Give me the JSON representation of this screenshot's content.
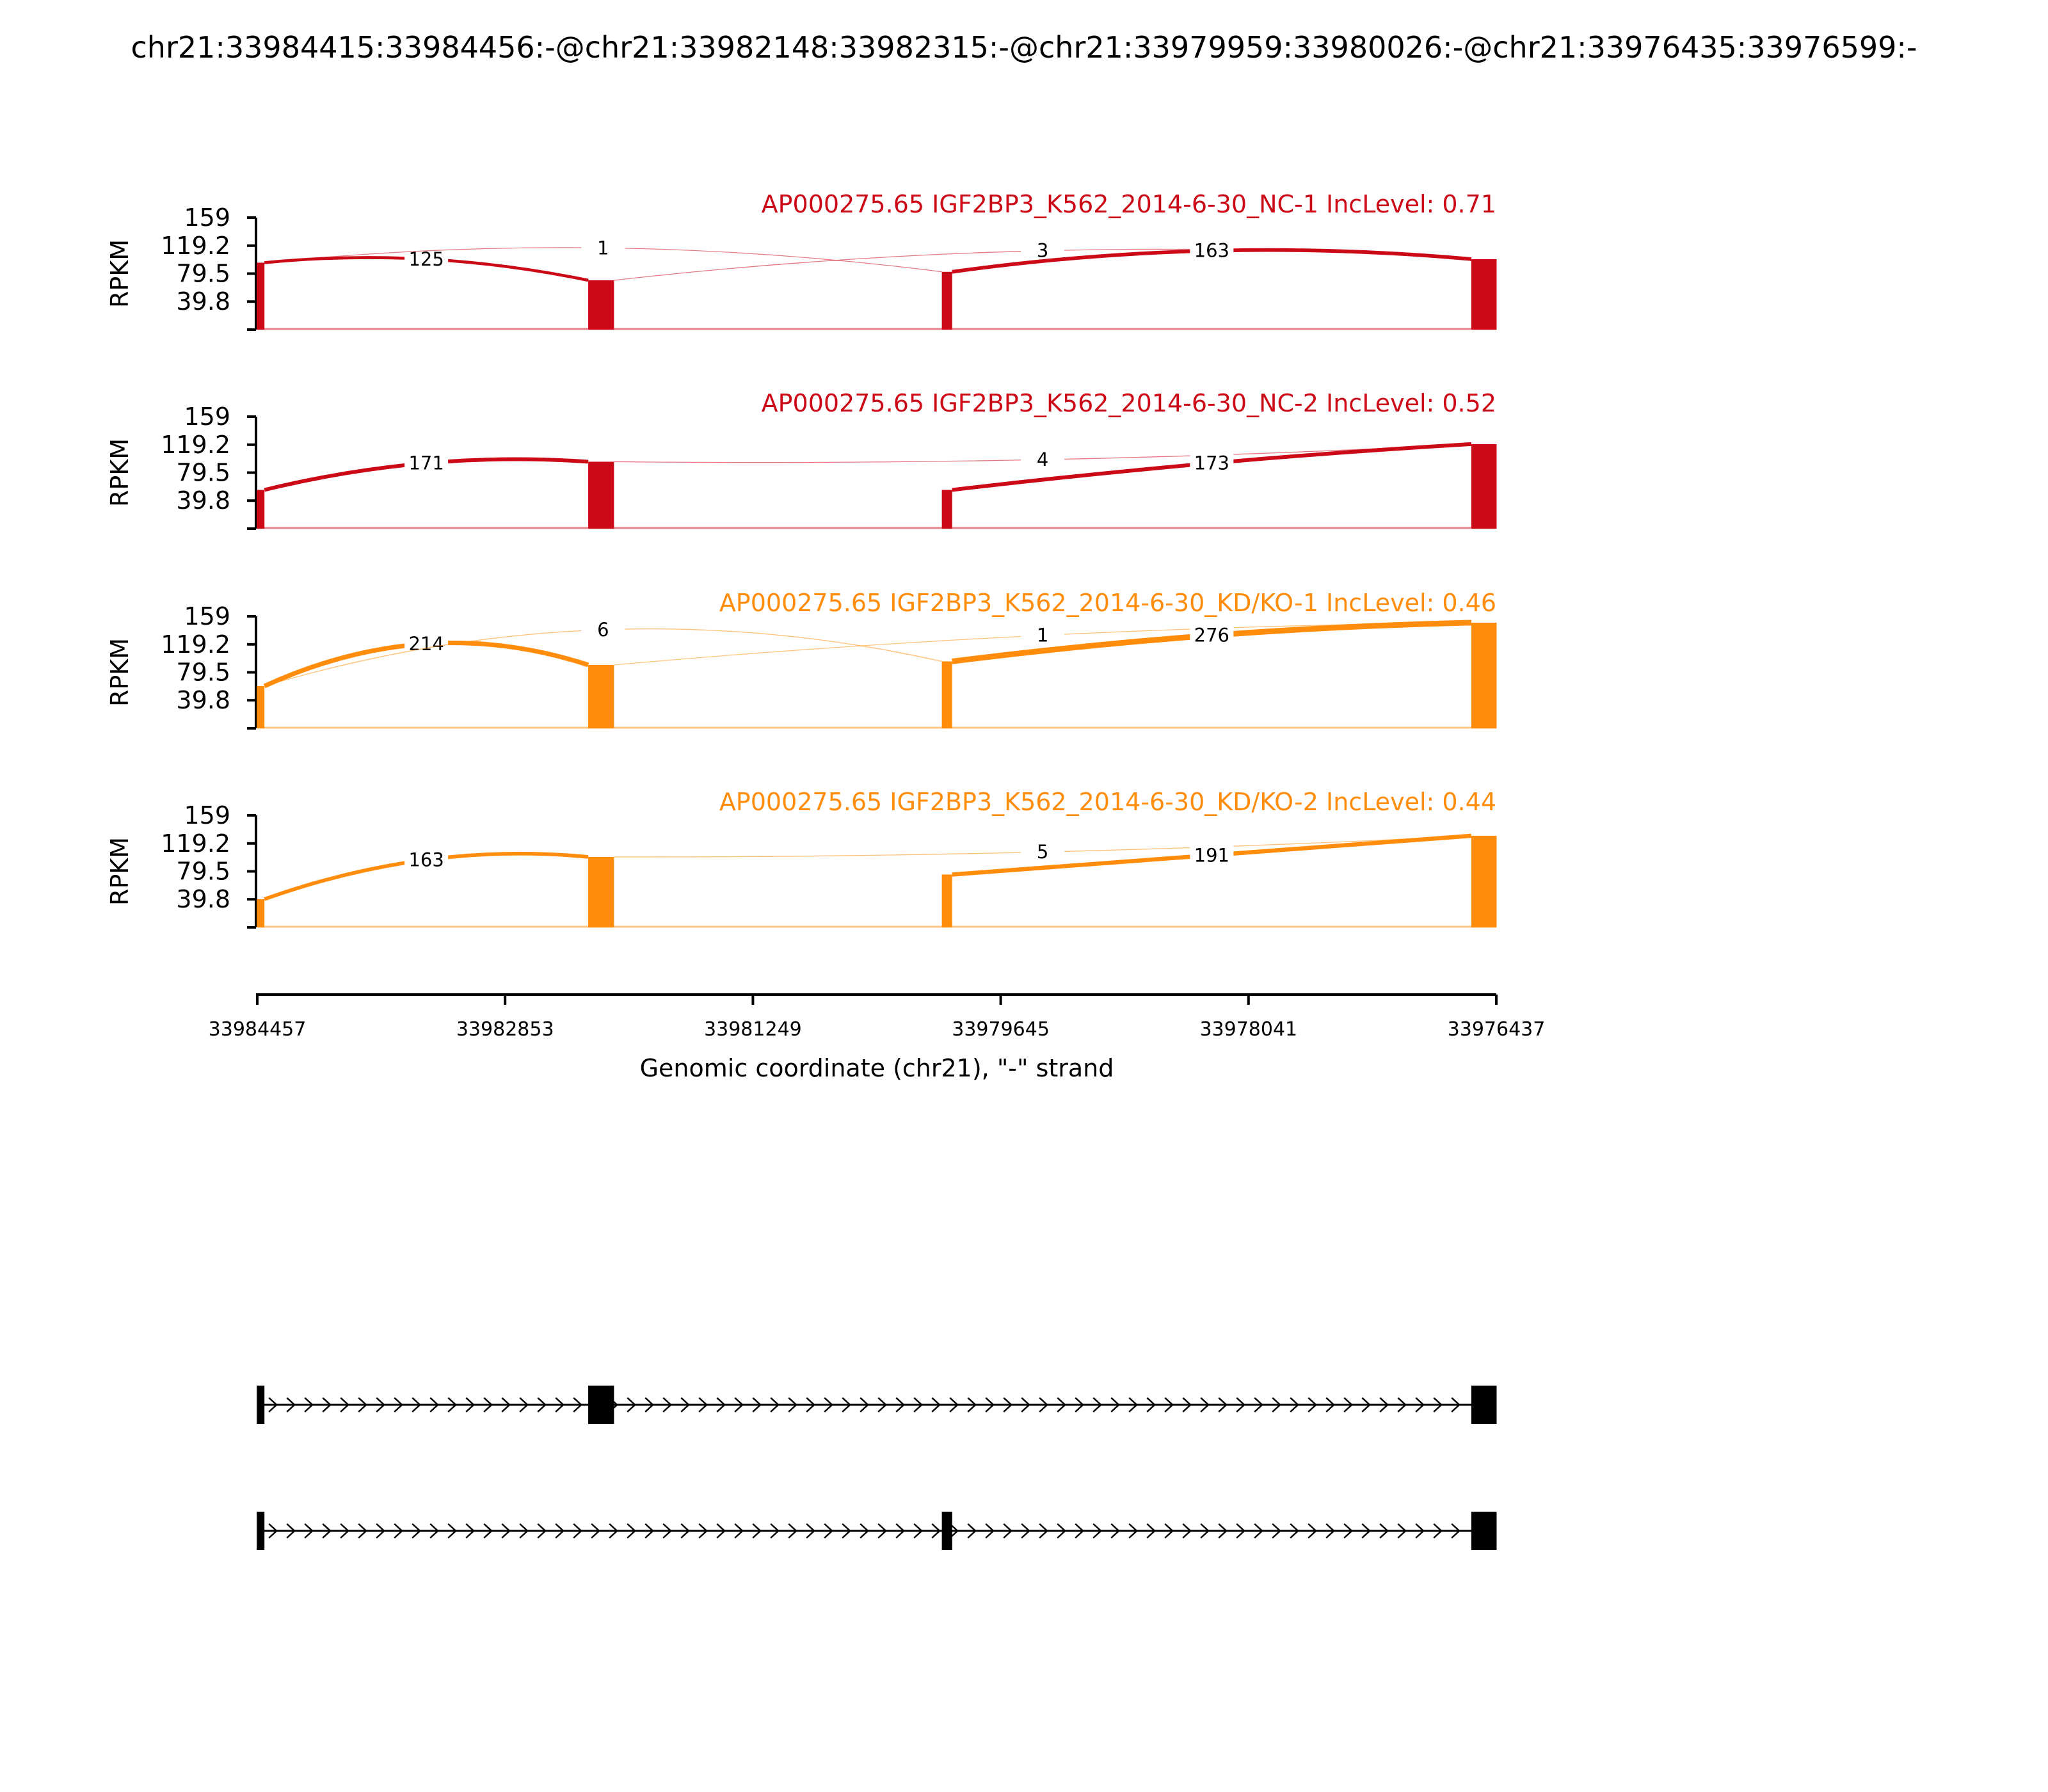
{
  "title": "chr21:33984415:33984456:-@chr21:33982148:33982315:-@chr21:33979959:33980026:-@chr21:33976435:33976599:-",
  "colors": {
    "nc": "#cc0a17",
    "kd": "#ff8c0a",
    "gene": "#000000"
  },
  "chart_data": {
    "type": "sashimi",
    "ylabel": "RPKM",
    "xlabel": "Genomic coordinate (chr21), \"-\" strand",
    "y_ticks": [
      "159",
      "119.2",
      "79.5",
      "39.8"
    ],
    "y_tick_values": [
      159,
      119.2,
      79.5,
      39.8
    ],
    "ylim": [
      0,
      159
    ],
    "x_ticks": [
      "33984457",
      "33982853",
      "33981249",
      "33979645",
      "33978041",
      "33976437"
    ],
    "x_tick_values": [
      33984457,
      33982853,
      33981249,
      33979645,
      33978041,
      33976437
    ],
    "xlim": [
      33984457,
      33976437
    ],
    "exons": [
      {
        "start": 33984456,
        "end": 33984415
      },
      {
        "start": 33982315,
        "end": 33982148
      },
      {
        "start": 33980026,
        "end": 33979959
      },
      {
        "start": 33976599,
        "end": 33976435
      }
    ],
    "tracks": [
      {
        "title": "AP000275.65 IGF2BP3_K562_2014-6-30_NC-1 IncLevel: 0.71",
        "group": "nc",
        "exon_heights": [
          95,
          70,
          82,
          100
        ],
        "junctions": [
          {
            "label": "125",
            "from_exon": 0,
            "to_exon": 1,
            "weight": 125,
            "peak": 100
          },
          {
            "label": "3",
            "from_exon": 1,
            "to_exon": 3,
            "weight": 3,
            "peak": 112
          },
          {
            "label": "1",
            "from_exon": 0,
            "to_exon": 2,
            "weight": 1,
            "peak": 116
          },
          {
            "label": "163",
            "from_exon": 2,
            "to_exon": 3,
            "weight": 163,
            "peak": 112
          }
        ]
      },
      {
        "title": "AP000275.65 IGF2BP3_K562_2014-6-30_NC-2 IncLevel: 0.52",
        "group": "nc",
        "exon_heights": [
          55,
          95,
          55,
          120
        ],
        "junctions": [
          {
            "label": "171",
            "from_exon": 0,
            "to_exon": 1,
            "weight": 171,
            "peak": 93
          },
          {
            "label": "4",
            "from_exon": 1,
            "to_exon": 3,
            "weight": 4,
            "peak": 98
          },
          {
            "label": "173",
            "from_exon": 2,
            "to_exon": 3,
            "weight": 173,
            "peak": 93
          }
        ]
      },
      {
        "title": "AP000275.65 IGF2BP3_K562_2014-6-30_KD/KO-1 IncLevel: 0.46",
        "group": "kd",
        "exon_heights": [
          60,
          90,
          95,
          150
        ],
        "junctions": [
          {
            "label": "214",
            "from_exon": 0,
            "to_exon": 1,
            "weight": 214,
            "peak": 120
          },
          {
            "label": "1",
            "from_exon": 1,
            "to_exon": 3,
            "weight": 1,
            "peak": 132
          },
          {
            "label": "6",
            "from_exon": 0,
            "to_exon": 2,
            "weight": 6,
            "peak": 140
          },
          {
            "label": "276",
            "from_exon": 2,
            "to_exon": 3,
            "weight": 276,
            "peak": 132
          }
        ]
      },
      {
        "title": "AP000275.65 IGF2BP3_K562_2014-6-30_KD/KO-2 IncLevel: 0.44",
        "group": "kd",
        "exon_heights": [
          40,
          100,
          75,
          130
        ],
        "junctions": [
          {
            "label": "163",
            "from_exon": 0,
            "to_exon": 1,
            "weight": 163,
            "peak": 96
          },
          {
            "label": "5",
            "from_exon": 1,
            "to_exon": 3,
            "weight": 5,
            "peak": 107
          },
          {
            "label": "191",
            "from_exon": 2,
            "to_exon": 3,
            "weight": 191,
            "peak": 102
          }
        ]
      }
    ],
    "isoforms": [
      {
        "exons": [
          0,
          1,
          3
        ]
      },
      {
        "exons": [
          0,
          2,
          3
        ]
      }
    ]
  }
}
